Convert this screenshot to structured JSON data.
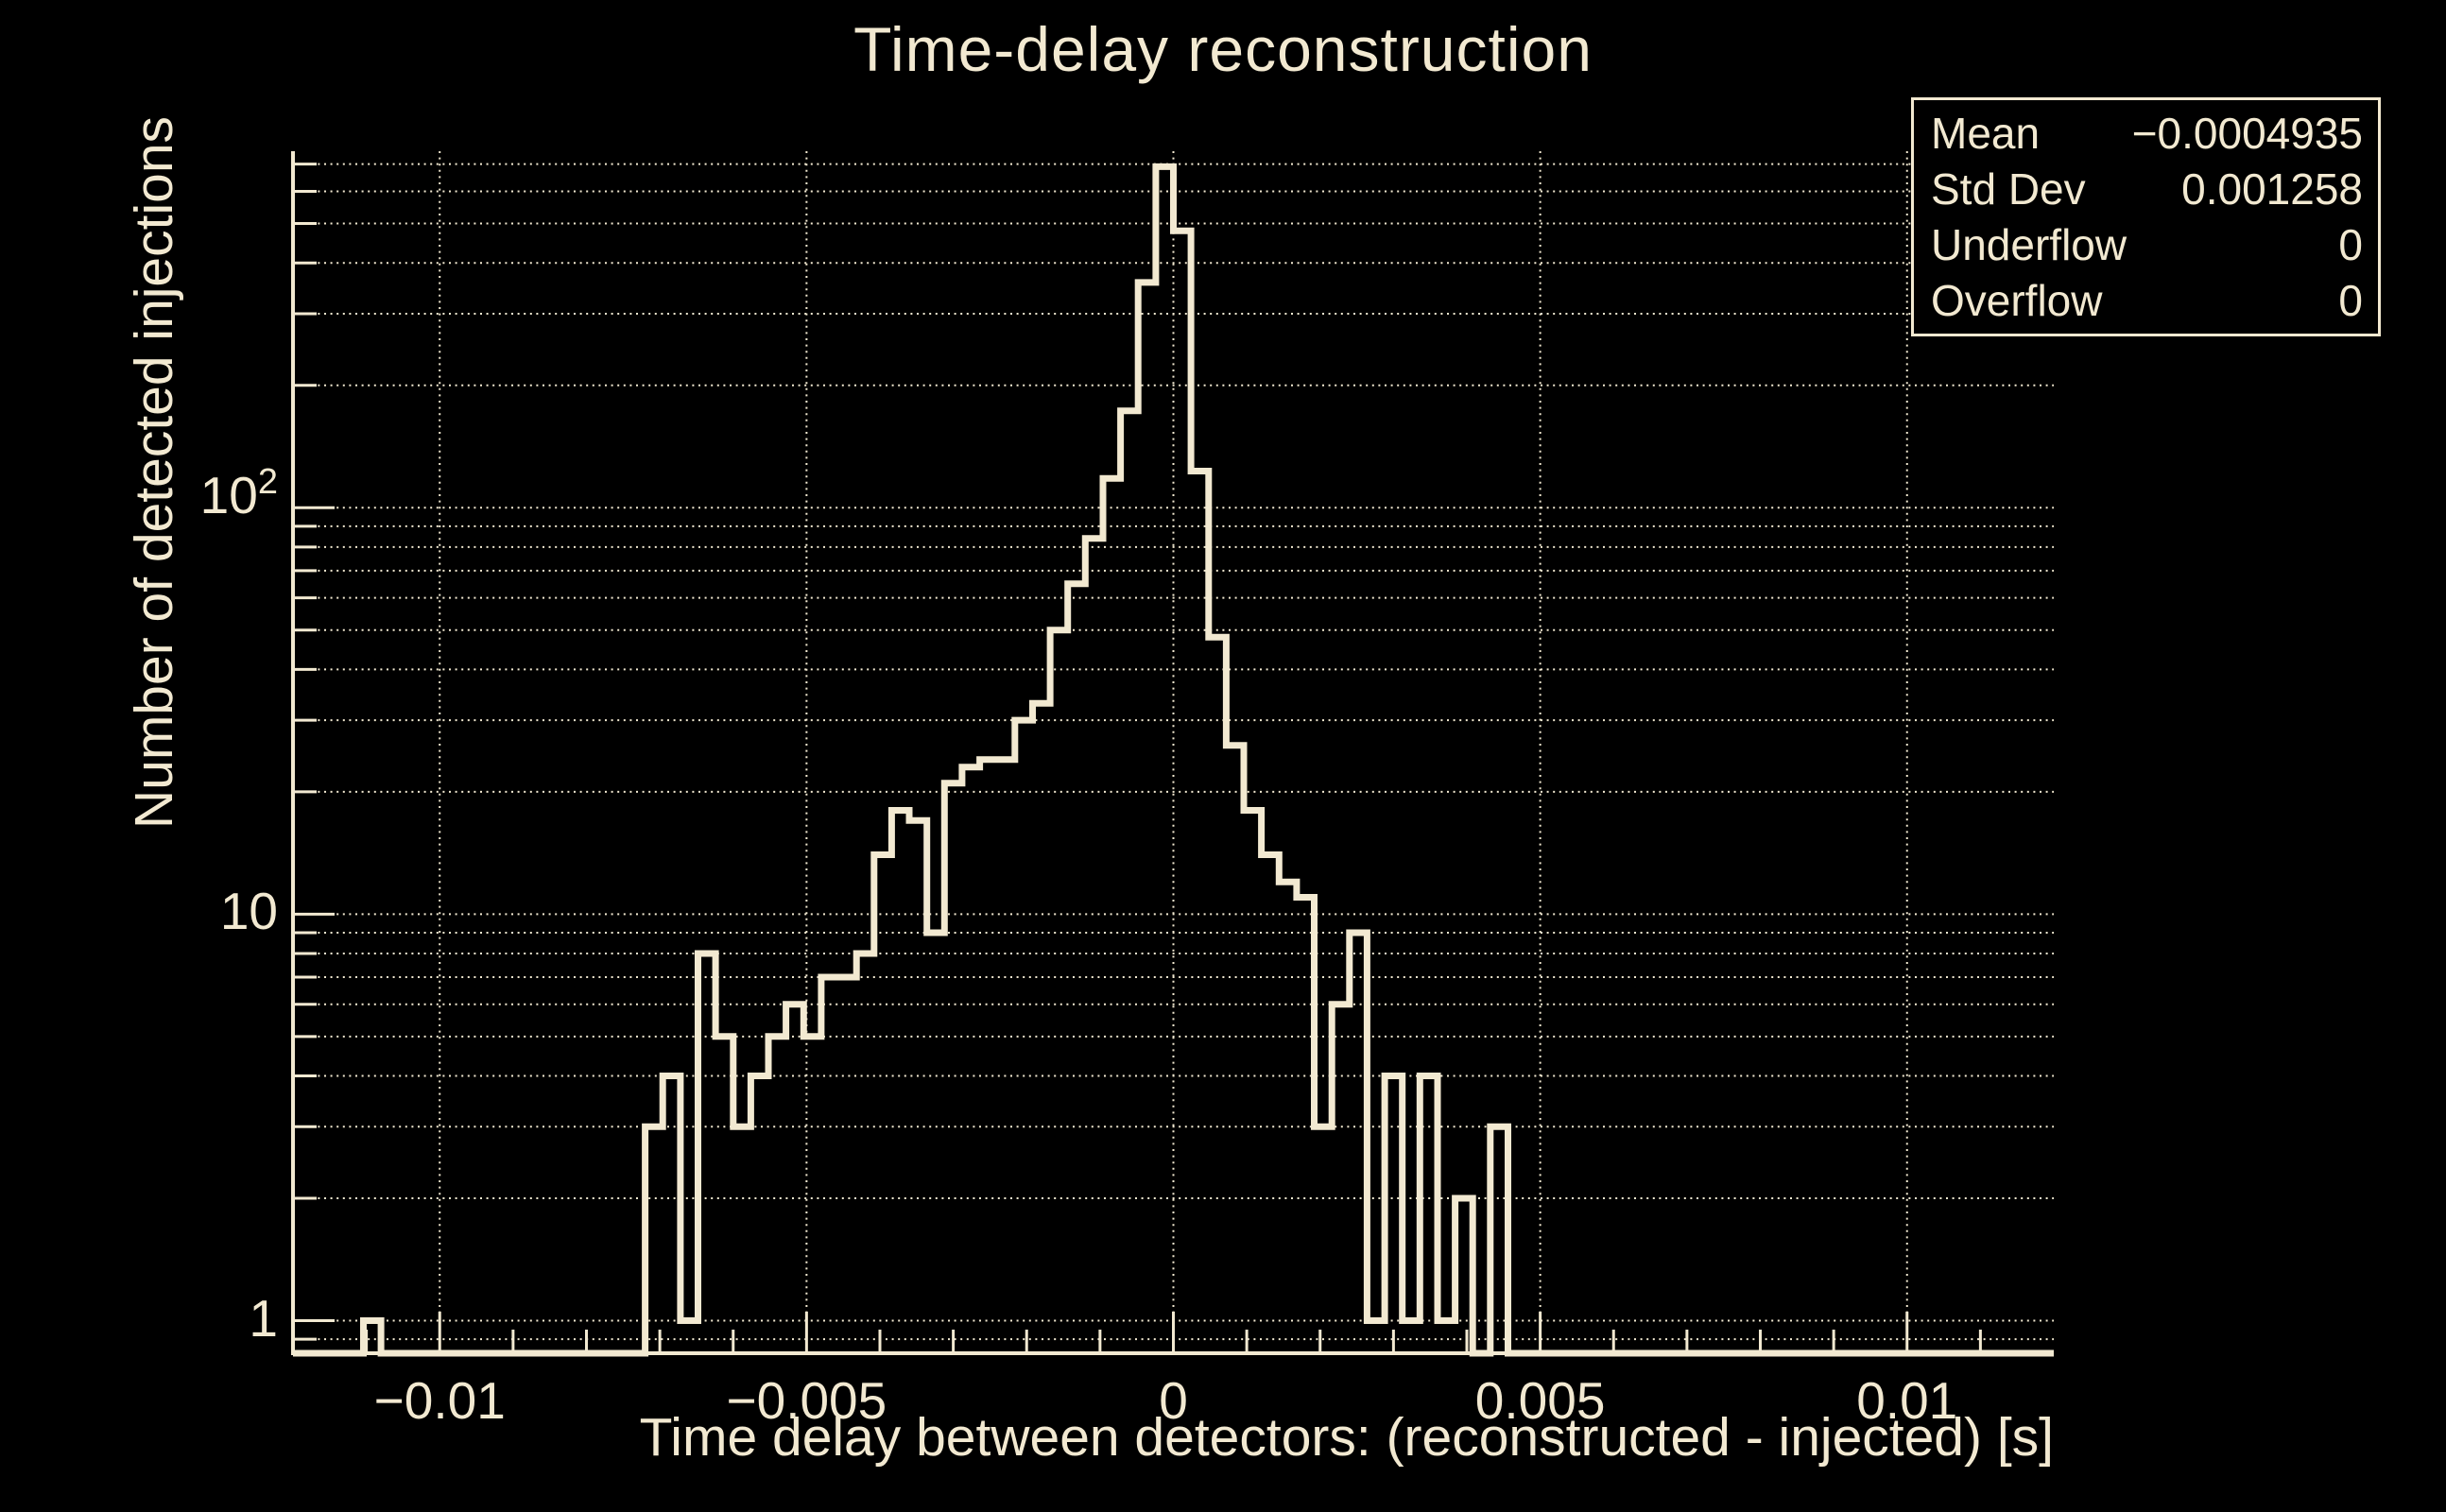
{
  "title": "Time-delay reconstruction",
  "colors": {
    "background": "#000000",
    "foreground": "#f2e9d1"
  },
  "stats_box": {
    "rows": [
      {
        "label": "Mean",
        "value": "−0.0004935"
      },
      {
        "label": "Std Dev",
        "value": "0.001258"
      },
      {
        "label": "Underflow",
        "value": "0"
      },
      {
        "label": "Overflow",
        "value": "0"
      }
    ]
  },
  "chart_data": {
    "type": "bar",
    "subtype": "step-outline-histogram",
    "title": "Time-delay reconstruction",
    "xlabel": "Time delay between detectors: (reconstructed - injected) [s]",
    "ylabel": "Number of detected injections",
    "x_range": [
      -0.012,
      0.012
    ],
    "n_bins": 100,
    "bin_width": 0.00024,
    "y_scale": "log",
    "y_display_range": [
      0.84,
      755
    ],
    "grid": "dotted, horizontal at 1-2-...-9 of each decade (0.9 to 700), vertical at major x ticks",
    "legend_position": "none",
    "x_major_ticks": [
      -0.01,
      -0.005,
      0,
      0.005,
      0.01
    ],
    "x_tick_labels": [
      "−0.01",
      "−0.005",
      "0",
      "0.005",
      "0.01"
    ],
    "x_minor_tick_step": 0.001,
    "y_decade_labels": [
      {
        "value": 1,
        "label": "1",
        "exp": ""
      },
      {
        "value": 10,
        "label": "10",
        "exp": ""
      },
      {
        "value": 100,
        "label": "10",
        "exp": "2"
      }
    ],
    "bins": [
      0,
      0,
      0,
      0,
      1,
      0,
      0,
      0,
      0,
      0,
      0,
      0,
      0,
      0,
      0,
      0,
      0,
      0,
      0,
      0,
      3,
      4,
      1,
      8,
      5,
      3,
      4,
      5,
      6,
      5,
      7,
      7,
      8,
      14,
      18,
      17,
      9,
      21,
      23,
      24,
      24,
      30,
      33,
      50,
      65,
      84,
      118,
      173,
      358,
      690,
      480,
      123,
      48,
      26,
      18,
      14,
      12,
      11,
      3,
      6,
      9,
      1,
      4,
      1,
      4,
      1,
      2,
      0,
      3,
      0,
      0,
      0,
      0,
      0,
      0,
      0,
      0,
      0,
      0,
      0,
      0,
      0,
      0,
      0,
      0,
      0,
      0,
      0,
      0,
      0,
      0,
      0,
      0,
      0,
      0,
      0,
      0,
      0,
      0,
      0
    ]
  }
}
